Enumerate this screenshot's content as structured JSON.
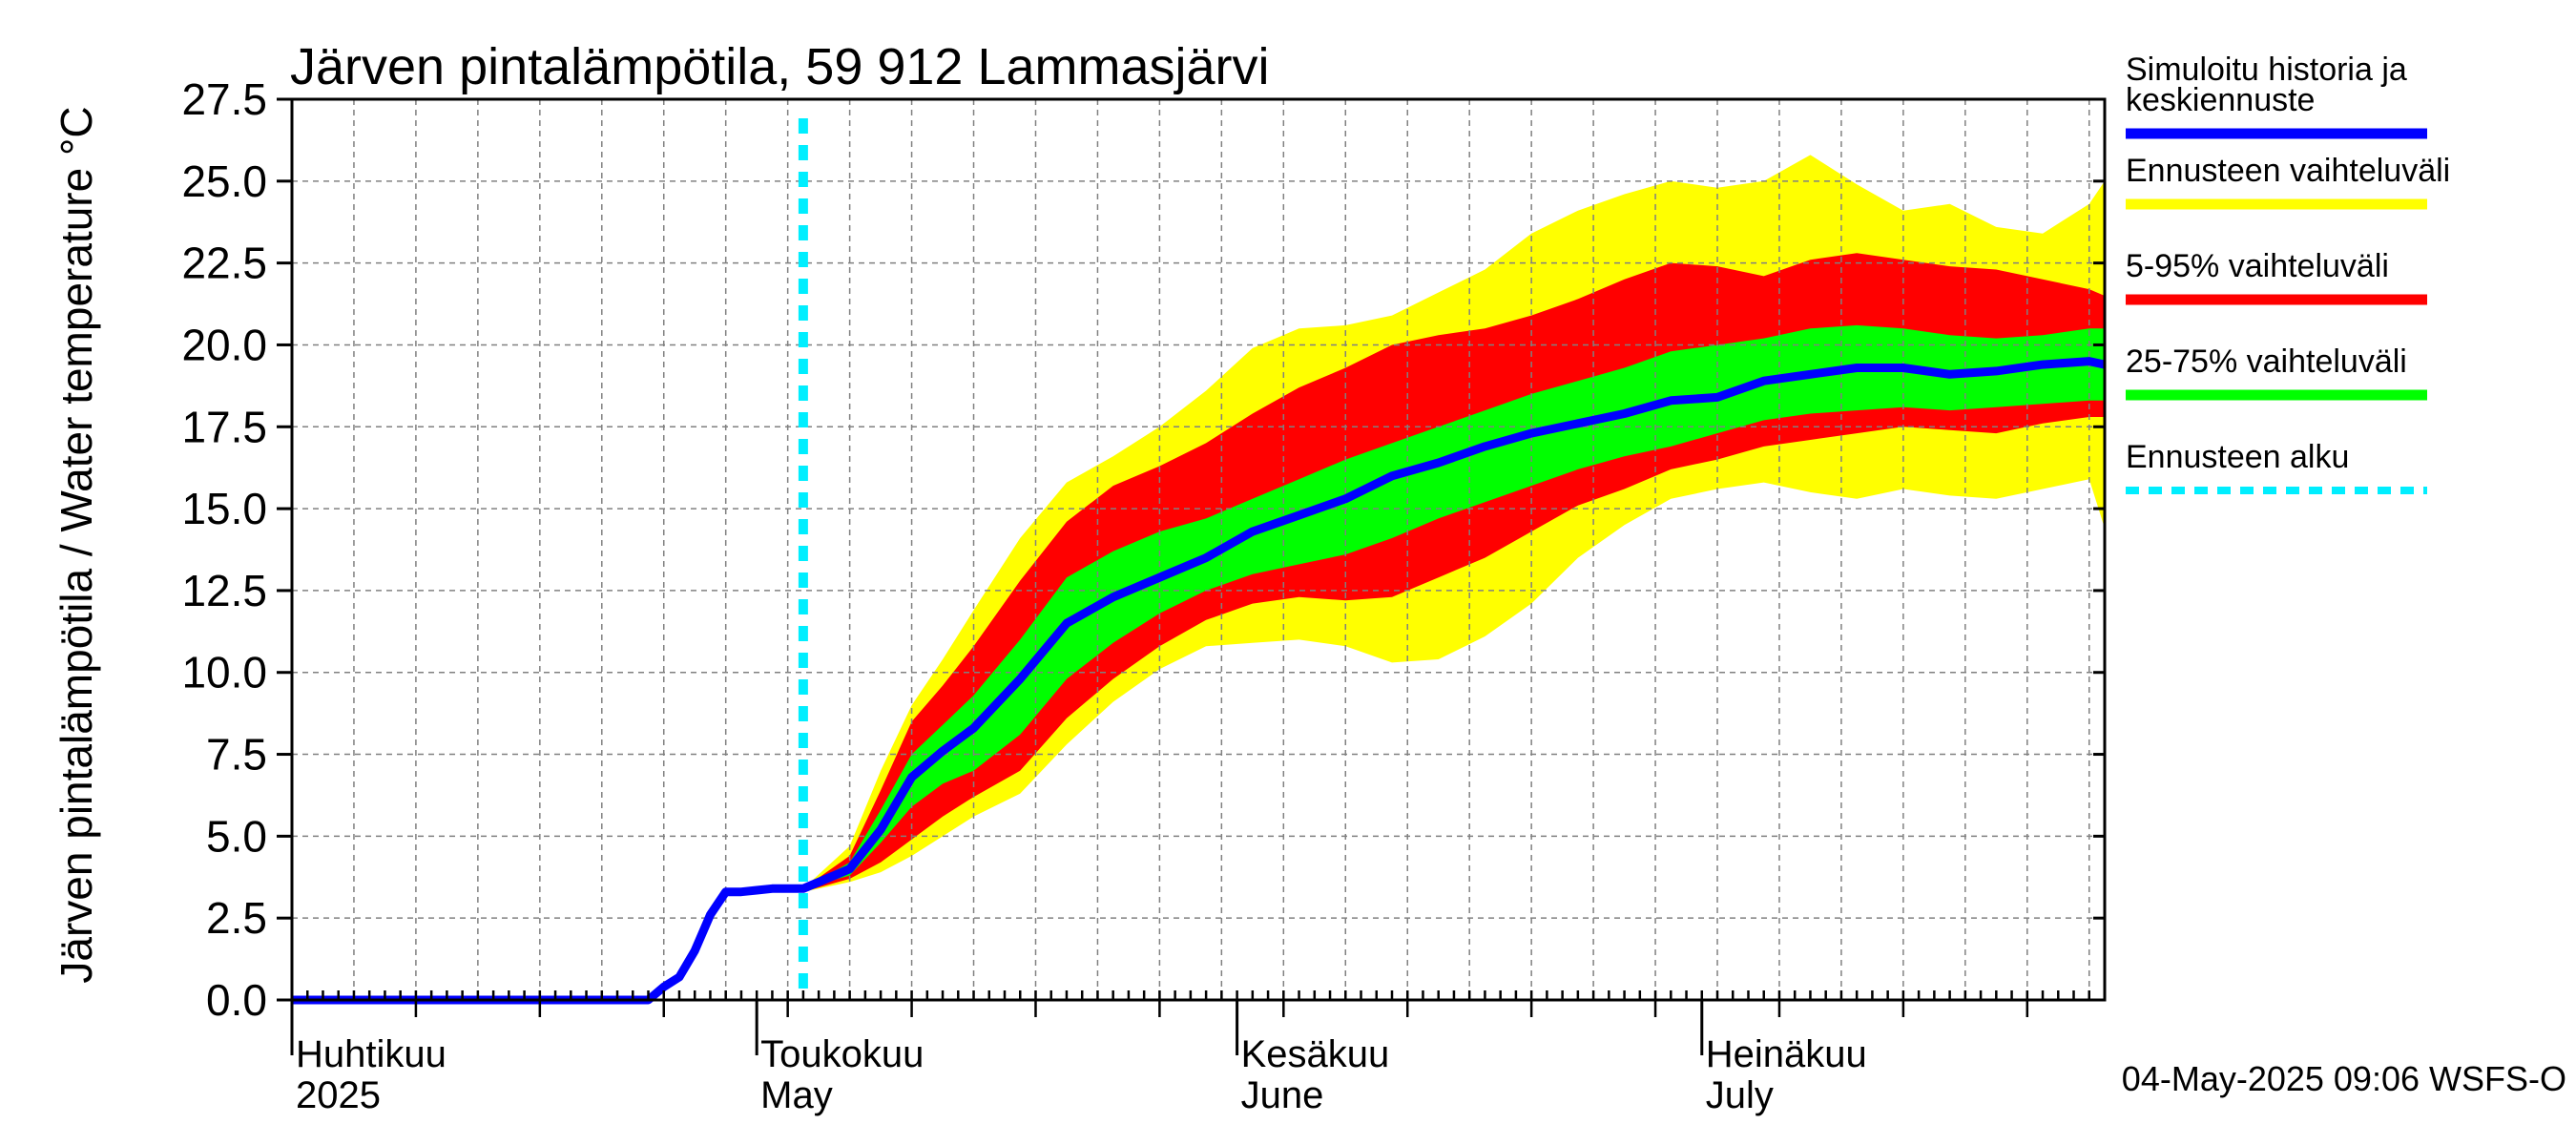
{
  "chart_data": {
    "type": "area",
    "title": "Järven pintalämpötila, 59 912 Lammasjärvi",
    "ylabel": "Järven pintalämpötila / Water temperature °C",
    "ylim": [
      0,
      27.5
    ],
    "yticks": [
      "0.0",
      "2.5",
      "5.0",
      "7.5",
      "10.0",
      "12.5",
      "15.0",
      "17.5",
      "20.0",
      "22.5",
      "25.0",
      "27.5"
    ],
    "xlim": [
      "2025-04-01",
      "2025-07-27"
    ],
    "months": [
      {
        "date": "2025-04-01",
        "fi": "Huhtikuu",
        "en": "2025"
      },
      {
        "date": "2025-05-01",
        "fi": "Toukokuu",
        "en": "May"
      },
      {
        "date": "2025-06-01",
        "fi": "Kesäkuu",
        "en": "June"
      },
      {
        "date": "2025-07-01",
        "fi": "Heinäkuu",
        "en": "July"
      }
    ],
    "forecast_start": "2025-05-04",
    "grid": true,
    "legend_position": "right",
    "legend": [
      {
        "label_line1": "Simuloitu historia ja",
        "label_line2": "keskiennuste",
        "color": "#0000ff",
        "style": "solid"
      },
      {
        "label_line1": "Ennusteen vaihteluväli",
        "color": "#ffff00",
        "style": "solid"
      },
      {
        "label_line1": "5-95% vaihteluväli",
        "color": "#ff0000",
        "style": "solid"
      },
      {
        "label_line1": "25-75% vaihteluväli",
        "color": "#00ff00",
        "style": "solid"
      },
      {
        "label_line1": "Ennusteen alku",
        "color": "#00eeff",
        "style": "dashed"
      }
    ],
    "history": {
      "x": [
        "2025-04-01",
        "2025-04-24",
        "2025-04-25",
        "2025-04-26",
        "2025-04-27",
        "2025-04-28",
        "2025-04-29",
        "2025-04-30",
        "2025-05-01",
        "2025-05-02",
        "2025-05-03",
        "2025-05-04"
      ],
      "y": [
        0.0,
        0.0,
        0.4,
        0.7,
        1.5,
        2.6,
        3.3,
        3.3,
        3.35,
        3.4,
        3.4,
        3.4
      ]
    },
    "forecast": {
      "x": [
        "2025-05-04",
        "2025-05-07",
        "2025-05-09",
        "2025-05-11",
        "2025-05-13",
        "2025-05-15",
        "2025-05-18",
        "2025-05-21",
        "2025-05-24",
        "2025-05-27",
        "2025-05-30",
        "2025-06-02",
        "2025-06-05",
        "2025-06-08",
        "2025-06-11",
        "2025-06-14",
        "2025-06-17",
        "2025-06-20",
        "2025-06-23",
        "2025-06-26",
        "2025-06-29",
        "2025-07-02",
        "2025-07-05",
        "2025-07-08",
        "2025-07-11",
        "2025-07-14",
        "2025-07-17",
        "2025-07-20",
        "2025-07-23",
        "2025-07-26",
        "2025-07-27"
      ],
      "median": [
        3.4,
        4.0,
        5.2,
        6.8,
        7.6,
        8.3,
        9.8,
        11.5,
        12.3,
        12.9,
        13.5,
        14.3,
        14.8,
        15.3,
        16.0,
        16.4,
        16.9,
        17.3,
        17.6,
        17.9,
        18.3,
        18.4,
        18.9,
        19.1,
        19.3,
        19.3,
        19.1,
        19.2,
        19.4,
        19.5,
        19.4
      ],
      "p25": [
        3.4,
        3.8,
        4.8,
        5.9,
        6.6,
        7.0,
        8.1,
        9.8,
        10.9,
        11.8,
        12.5,
        13.0,
        13.3,
        13.6,
        14.1,
        14.7,
        15.2,
        15.7,
        16.2,
        16.6,
        16.9,
        17.3,
        17.7,
        17.9,
        18.0,
        18.1,
        18.0,
        18.1,
        18.2,
        18.3,
        18.3
      ],
      "p75": [
        3.4,
        4.2,
        5.8,
        7.5,
        8.4,
        9.3,
        11.0,
        12.9,
        13.7,
        14.3,
        14.7,
        15.3,
        15.9,
        16.5,
        17.0,
        17.5,
        18.0,
        18.5,
        18.9,
        19.3,
        19.8,
        20.0,
        20.2,
        20.5,
        20.6,
        20.5,
        20.3,
        20.2,
        20.3,
        20.5,
        20.5
      ],
      "p05": [
        3.3,
        3.7,
        4.2,
        4.9,
        5.6,
        6.2,
        7.0,
        8.6,
        9.8,
        10.8,
        11.6,
        12.1,
        12.3,
        12.2,
        12.3,
        12.9,
        13.5,
        14.3,
        15.1,
        15.6,
        16.2,
        16.5,
        16.9,
        17.1,
        17.3,
        17.5,
        17.4,
        17.3,
        17.6,
        17.8,
        17.8
      ],
      "p95": [
        3.4,
        4.4,
        6.4,
        8.5,
        9.6,
        10.8,
        12.8,
        14.6,
        15.7,
        16.3,
        17.0,
        17.9,
        18.7,
        19.3,
        20.0,
        20.3,
        20.5,
        20.9,
        21.4,
        22.0,
        22.5,
        22.4,
        22.1,
        22.6,
        22.8,
        22.6,
        22.4,
        22.3,
        22.0,
        21.7,
        21.5
      ],
      "min": [
        3.3,
        3.6,
        3.9,
        4.4,
        5.0,
        5.6,
        6.3,
        7.8,
        9.1,
        10.1,
        10.8,
        10.9,
        11.0,
        10.8,
        10.3,
        10.4,
        11.1,
        12.1,
        13.5,
        14.5,
        15.3,
        15.6,
        15.8,
        15.5,
        15.3,
        15.6,
        15.4,
        15.3,
        15.6,
        15.9,
        14.4
      ],
      "max": [
        3.4,
        4.7,
        7.0,
        9.0,
        10.4,
        11.9,
        14.1,
        15.8,
        16.6,
        17.5,
        18.6,
        19.9,
        20.5,
        20.6,
        20.9,
        21.6,
        22.3,
        23.4,
        24.1,
        24.6,
        25.0,
        24.8,
        25.0,
        25.8,
        24.9,
        24.1,
        24.3,
        23.6,
        23.4,
        24.3,
        25.0
      ]
    }
  },
  "footer": {
    "timestamp": "04-May-2025 09:06 WSFS-O"
  },
  "colors": {
    "median": "#0000ff",
    "range": "#ffff00",
    "p5_95": "#ff0000",
    "p25_75": "#00ff00",
    "forecast_start": "#00eeff",
    "grid": "#808080"
  }
}
